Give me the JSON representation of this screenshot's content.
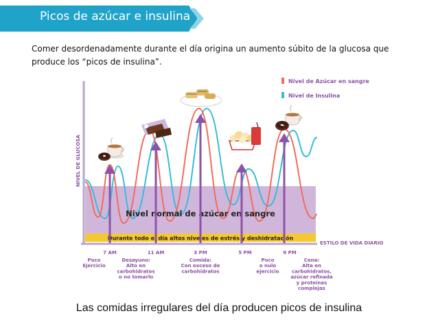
{
  "header": {
    "title": "Picos de azúcar e insulina",
    "accent_color": "#1fa3c9"
  },
  "intro": {
    "text": "Comer desordenadamente durante el día origina un aumento súbito de la glucosa que produce los “picos de insulina”."
  },
  "diagram": {
    "legend": {
      "sugar": "Nivel de Azúcar en sangre",
      "insulin": "Nivel de Insulina",
      "sugar_color": "#f26b5b",
      "insulin_color": "#36bcd6"
    },
    "y_axis_label": "NIVEL DE GLUCOSA",
    "x_axis_label": "ESTILO DE VIDA DIARIO",
    "normal_band_label": "Nivel normal de azúcar en sangre",
    "band_color": "#c9a9d6",
    "stress_bar_label": "Durante todo el día altos niveles de estrés y deshidratación",
    "stress_bar_color": "#f6c830",
    "arrow_color": "#8e52a6",
    "time_marks": [
      {
        "time": "7 AM",
        "desc": [
          "Poco",
          "Ejercicio"
        ]
      },
      {
        "time": "11 AM",
        "desc": [
          "Desayuno:",
          "Alto en",
          "carbohidratos",
          "o no tomarlo"
        ]
      },
      {
        "time": "3 PM",
        "desc": [
          "Comida:",
          "Con exceso de",
          "carbohidratos"
        ]
      },
      {
        "time": "5 PM",
        "desc": [
          "Poco",
          "o nulo",
          "ejercicio"
        ]
      },
      {
        "time": "9 PM",
        "desc": [
          "Cena:",
          "Alta en",
          "carbohidratos,",
          "azúcar refinada",
          "y proteínas",
          "complejas"
        ]
      }
    ],
    "food_icons": [
      "coffee-donut-icon",
      "chocolate-icon",
      "pastry-plate-icon",
      "popcorn-soda-icon",
      "donut-coffee-icon"
    ]
  },
  "caption": {
    "text": "Las comidas irregulares del día producen picos de insulina"
  }
}
